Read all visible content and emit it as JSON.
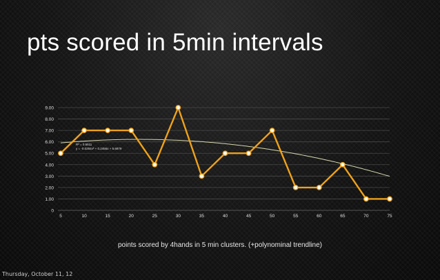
{
  "slide": {
    "title": "pts scored in 5min intervals",
    "caption": "points scored by 4hands in 5 min clusters. (+polynominal trendline)",
    "footer_date": "Thursday, October 11, 12"
  },
  "chart_data": {
    "type": "line",
    "title": "",
    "xlabel": "",
    "ylabel": "",
    "x": [
      5,
      10,
      15,
      20,
      25,
      30,
      35,
      40,
      45,
      50,
      55,
      60,
      65,
      70,
      75
    ],
    "series": [
      {
        "values": [
          5,
          7,
          7,
          7,
          4,
          9,
          3,
          5,
          5,
          7,
          2,
          2,
          4,
          1,
          1
        ]
      }
    ],
    "xlim": [
      5,
      75
    ],
    "ylim": [
      0,
      9
    ],
    "y_ticks": [
      "0",
      "1.00",
      "2.00",
      "3.00",
      "4.00",
      "5.00",
      "6.00",
      "7.00",
      "8.00",
      "9.00"
    ],
    "x_ticks": [
      "5",
      "10",
      "15",
      "20",
      "25",
      "30",
      "35",
      "40",
      "45",
      "50",
      "55",
      "60",
      "65",
      "70",
      "75"
    ],
    "grid": true,
    "trendline": {
      "type": "polynomial",
      "coefficients": [
        -0.0284,
        0.2455,
        5.6879
      ],
      "r2_label": "R² = 0.5511",
      "equation_label": "y = -0.0284x² + 0.2455x + 5.6879"
    },
    "colors": {
      "line": "#f0a21a",
      "marker_fill": "#ffffff",
      "trendline": "#d8d8b0",
      "grid": "#4a4a4a",
      "text": "#e0e0e0"
    }
  }
}
